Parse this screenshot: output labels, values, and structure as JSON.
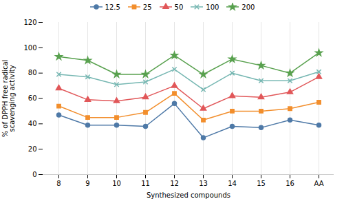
{
  "chart_data": {
    "type": "line",
    "xlabel": "Synthesized compounds",
    "ylabel": "% of DPPH free radical\nscavenging activity",
    "categories": [
      "8",
      "9",
      "10",
      "11",
      "12",
      "13",
      "14",
      "15",
      "16",
      "AA"
    ],
    "series": [
      {
        "name": "12.5",
        "values": [
          47,
          39,
          39,
          38,
          56,
          29,
          38,
          37,
          43,
          39
        ],
        "marker": "circle"
      },
      {
        "name": "25",
        "values": [
          54,
          45,
          45,
          49,
          64,
          43,
          50,
          50,
          52,
          57
        ],
        "marker": "square"
      },
      {
        "name": "50",
        "values": [
          68,
          59,
          58,
          61,
          70,
          52,
          62,
          61,
          65,
          77
        ],
        "marker": "triangle"
      },
      {
        "name": "100",
        "values": [
          79,
          77,
          71,
          73,
          83,
          67,
          80,
          74,
          74,
          81
        ],
        "marker": "times"
      },
      {
        "name": "200",
        "values": [
          93,
          90,
          79,
          79,
          94,
          79,
          91,
          86,
          80,
          96
        ],
        "marker": "star"
      }
    ],
    "ylim": [
      0,
      120
    ],
    "yticks": [
      0,
      20,
      40,
      60,
      80,
      100,
      120
    ],
    "grid": "x",
    "legend": "top"
  }
}
